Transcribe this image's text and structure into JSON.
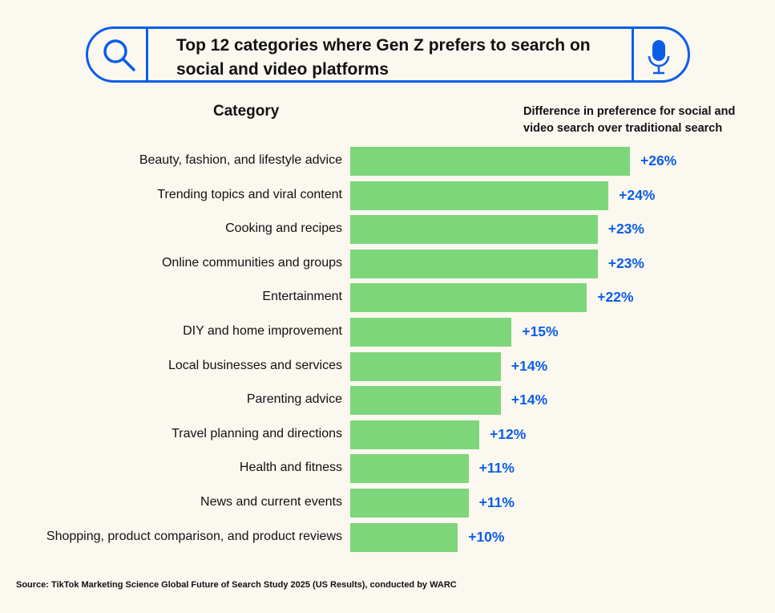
{
  "chart_data": {
    "type": "bar",
    "orientation": "horizontal",
    "title": "Top 12 categories where Gen Z prefers to search on social and video platforms",
    "category_header": "Category",
    "value_header": "Difference in preference for social and video search over traditional search",
    "categories": [
      "Beauty, fashion, and lifestyle advice",
      "Trending topics and viral content",
      "Cooking and recipes",
      "Online communities and groups",
      "Entertainment",
      "DIY and home improvement",
      "Local businesses and services",
      "Parenting advice",
      "Travel planning and directions",
      "Health and fitness",
      "News and current events",
      "Shopping, product comparison, and product reviews"
    ],
    "values": [
      26,
      24,
      23,
      23,
      22,
      15,
      14,
      14,
      12,
      11,
      11,
      10
    ],
    "value_labels": [
      "+26%",
      "+24%",
      "+23%",
      "+23%",
      "+22%",
      "+15%",
      "+14%",
      "+14%",
      "+12%",
      "+11%",
      "+11%",
      "+10%"
    ],
    "xlim": [
      0,
      26
    ],
    "bar_color": "#7ed67b",
    "label_color": "#0b5de8"
  },
  "source": "Source: TikTok Marketing Science Global Future of Search Study 2025 (US Results), conducted by WARC",
  "icons": [
    "search-icon",
    "microphone-icon"
  ]
}
